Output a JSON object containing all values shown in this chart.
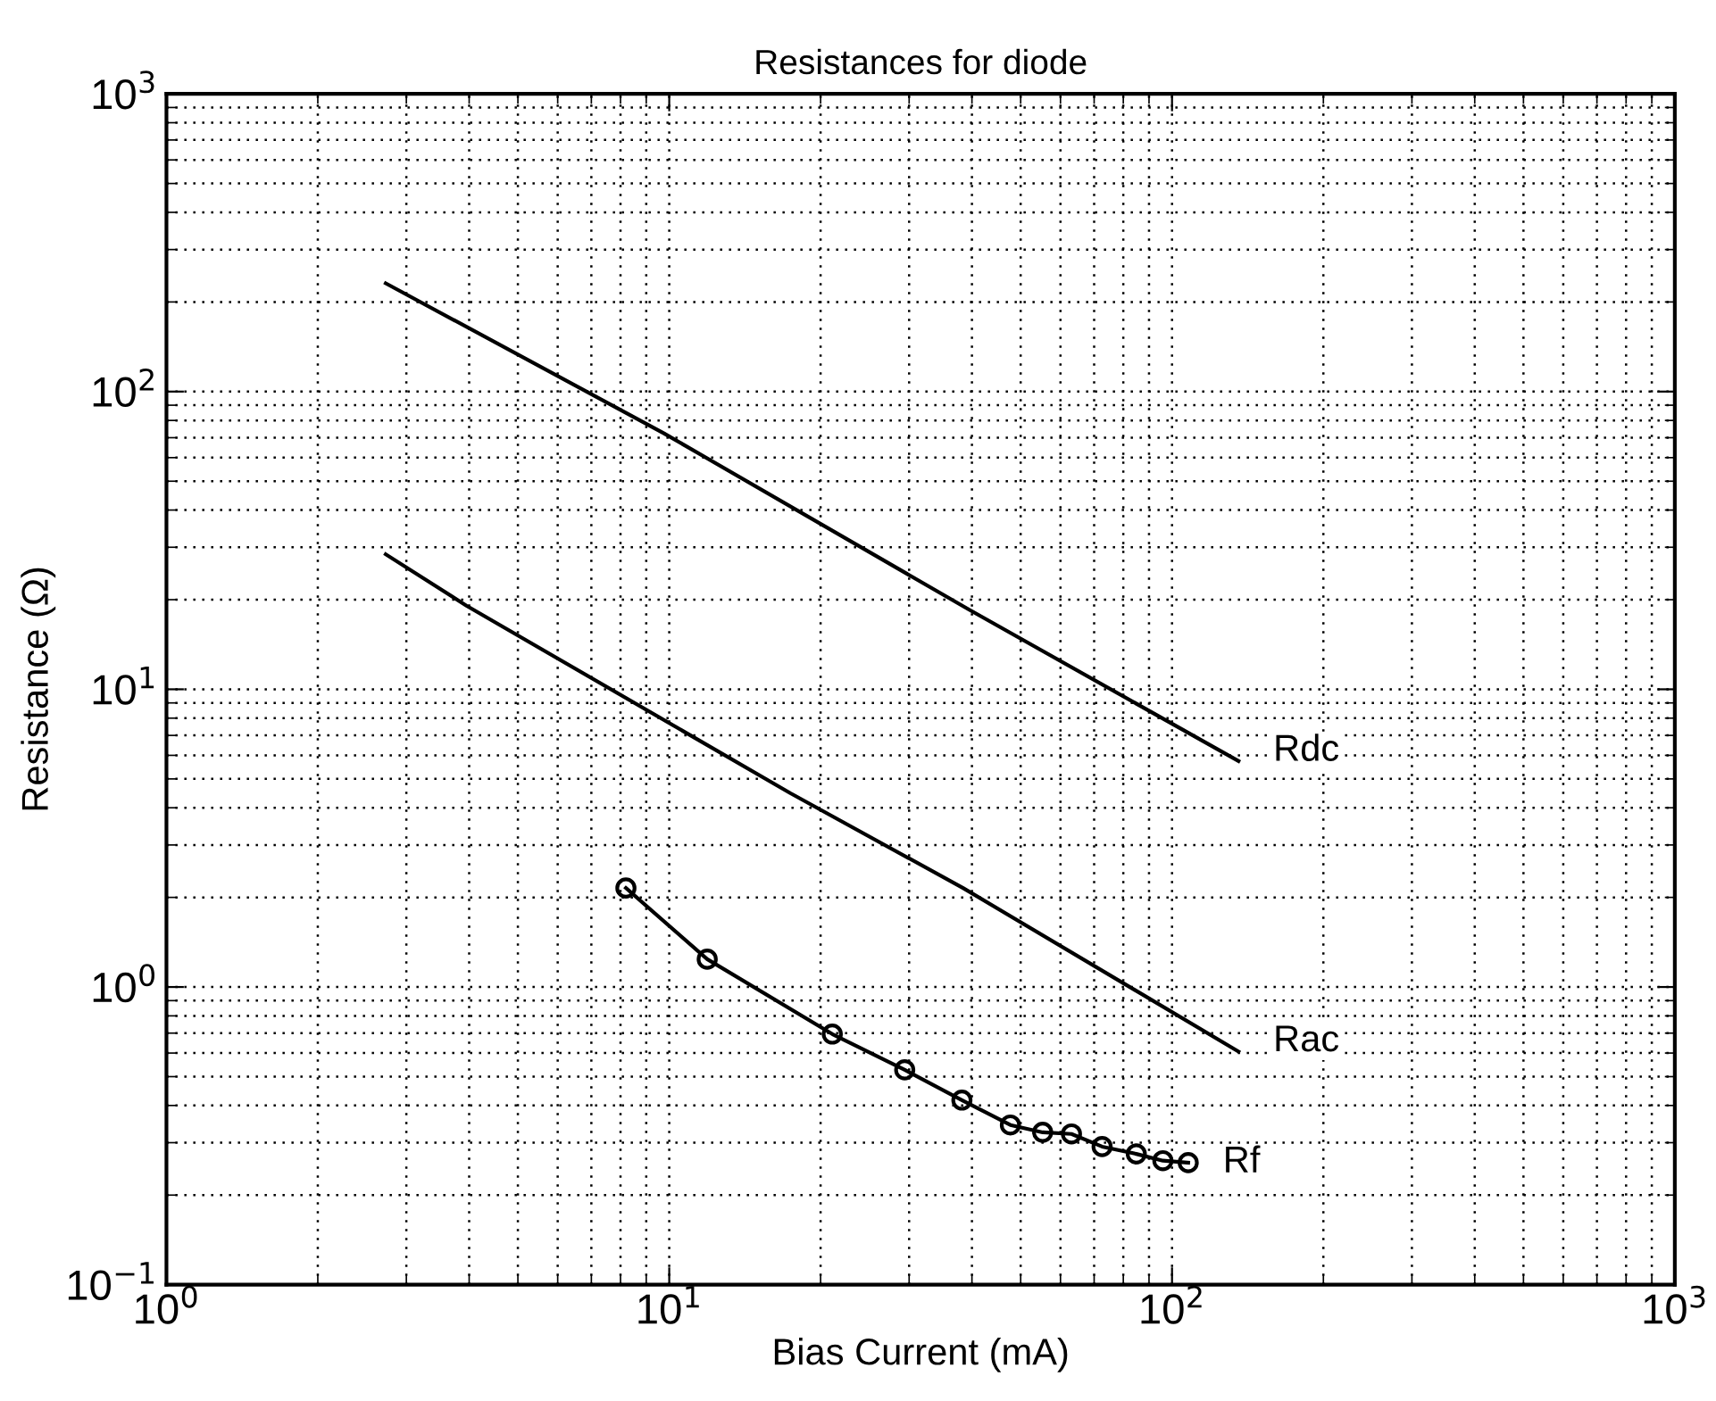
{
  "chart_data": {
    "type": "line",
    "title": "Resistances for diode",
    "xlabel": "Bias Current (mA)",
    "ylabel": "Resistance (Ω)",
    "log": "xy",
    "grid": true,
    "line_style": "solid",
    "xlim": [
      1,
      1000
    ],
    "ylim": [
      0.1,
      1000
    ],
    "xticks": [
      {
        "value": 1,
        "label": "10$^{0}$"
      },
      {
        "value": 10,
        "label": "10$^{1}$"
      },
      {
        "value": 100,
        "label": "10$^{2}$"
      },
      {
        "value": 1000,
        "label": "10$^{3}$"
      }
    ],
    "yticks": [
      {
        "value": 0.1,
        "label": "10$^{−1}$"
      },
      {
        "value": 1,
        "label": "10$^{0}$"
      },
      {
        "value": 10,
        "label": "10$^{1}$"
      },
      {
        "value": 100,
        "label": "10$^{2}$"
      },
      {
        "value": 1000,
        "label": "10$^{3}$"
      }
    ],
    "series": [
      {
        "name": "Rdc",
        "color": "#000000",
        "marker": "none",
        "x": [
          2.73,
          9.76,
          39.5,
          135.6
        ],
        "values": [
          231,
          72.4,
          18.5,
          5.74
        ]
      },
      {
        "name": "Rac",
        "color": "#000000",
        "marker": "none",
        "x": [
          2.73,
          3.95,
          17.4,
          38.4,
          135.6
        ],
        "values": [
          28.4,
          19.1,
          4.48,
          2.15,
          0.607
        ]
      },
      {
        "name": "Rf",
        "color": "#000000",
        "marker": "circle",
        "x": [
          8.2,
          11.9,
          21.1,
          29.4,
          38.2,
          47.7,
          55.3,
          63.1,
          72.6,
          84.9,
          95.9,
          107.7
        ],
        "values": [
          2.15,
          1.24,
          0.695,
          0.527,
          0.417,
          0.344,
          0.325,
          0.321,
          0.291,
          0.275,
          0.261,
          0.257
        ]
      }
    ]
  }
}
